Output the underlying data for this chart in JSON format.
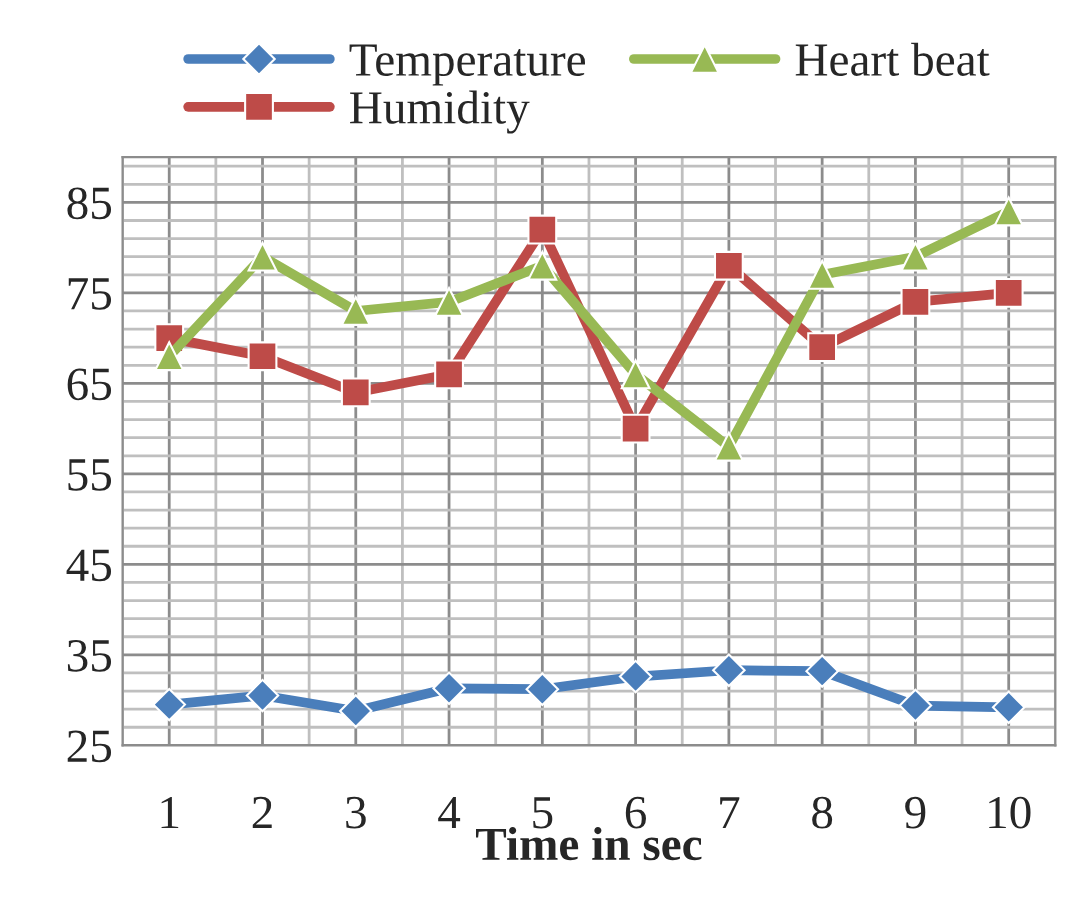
{
  "chart_data": {
    "type": "line",
    "xlabel": "Time in sec",
    "categories": [
      "1",
      "2",
      "3",
      "4",
      "5",
      "6",
      "7",
      "8",
      "9",
      "10"
    ],
    "series": [
      {
        "name": "Temperature",
        "color": "#4a7ebb",
        "marker": "diamond",
        "values": [
          29.5,
          30.5,
          28.8,
          31.3,
          31.2,
          32.6,
          33.3,
          33.2,
          29.4,
          29.2
        ]
      },
      {
        "name": "Humidity",
        "color": "#be4b48",
        "marker": "square",
        "values": [
          70,
          68,
          64,
          66,
          82,
          60,
          78,
          69,
          74,
          75
        ]
      },
      {
        "name": "Heart beat",
        "color": "#98b954",
        "marker": "triangle",
        "values": [
          68,
          79,
          73,
          74,
          78,
          66,
          58,
          77,
          79,
          84
        ]
      }
    ],
    "ylim": [
      25,
      90
    ],
    "yticks": [
      25,
      35,
      45,
      55,
      65,
      75,
      85
    ],
    "grid": true,
    "legend": "top",
    "line_style": "solid"
  }
}
